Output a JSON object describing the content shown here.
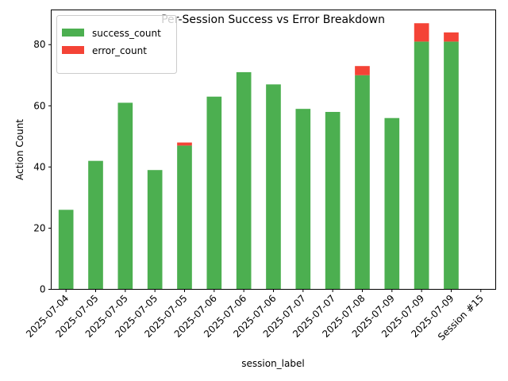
{
  "chart_data": {
    "type": "bar",
    "stacked": true,
    "title": "Per-Session Success vs Error Breakdown",
    "xlabel": "session_label",
    "ylabel": "Action Count",
    "categories": [
      "2025-07-04",
      "2025-07-05",
      "2025-07-05",
      "2025-07-05",
      "2025-07-05",
      "2025-07-06",
      "2025-07-06",
      "2025-07-06",
      "2025-07-07",
      "2025-07-07",
      "2025-07-08",
      "2025-07-09",
      "2025-07-09",
      "2025-07-09",
      "Session #15"
    ],
    "series": [
      {
        "name": "success_count",
        "color": "#4caf50",
        "values": [
          26,
          42,
          61,
          39,
          47,
          63,
          71,
          67,
          59,
          58,
          70,
          56,
          81,
          81,
          0
        ]
      },
      {
        "name": "error_count",
        "color": "#f44336",
        "values": [
          0,
          0,
          0,
          0,
          1,
          0,
          0,
          0,
          0,
          0,
          3,
          0,
          6,
          3,
          0
        ]
      }
    ],
    "ylim": [
      0,
      91.35
    ],
    "yticks": [
      0,
      20,
      40,
      60,
      80
    ],
    "legend_position": "upper-left",
    "grid": false
  }
}
